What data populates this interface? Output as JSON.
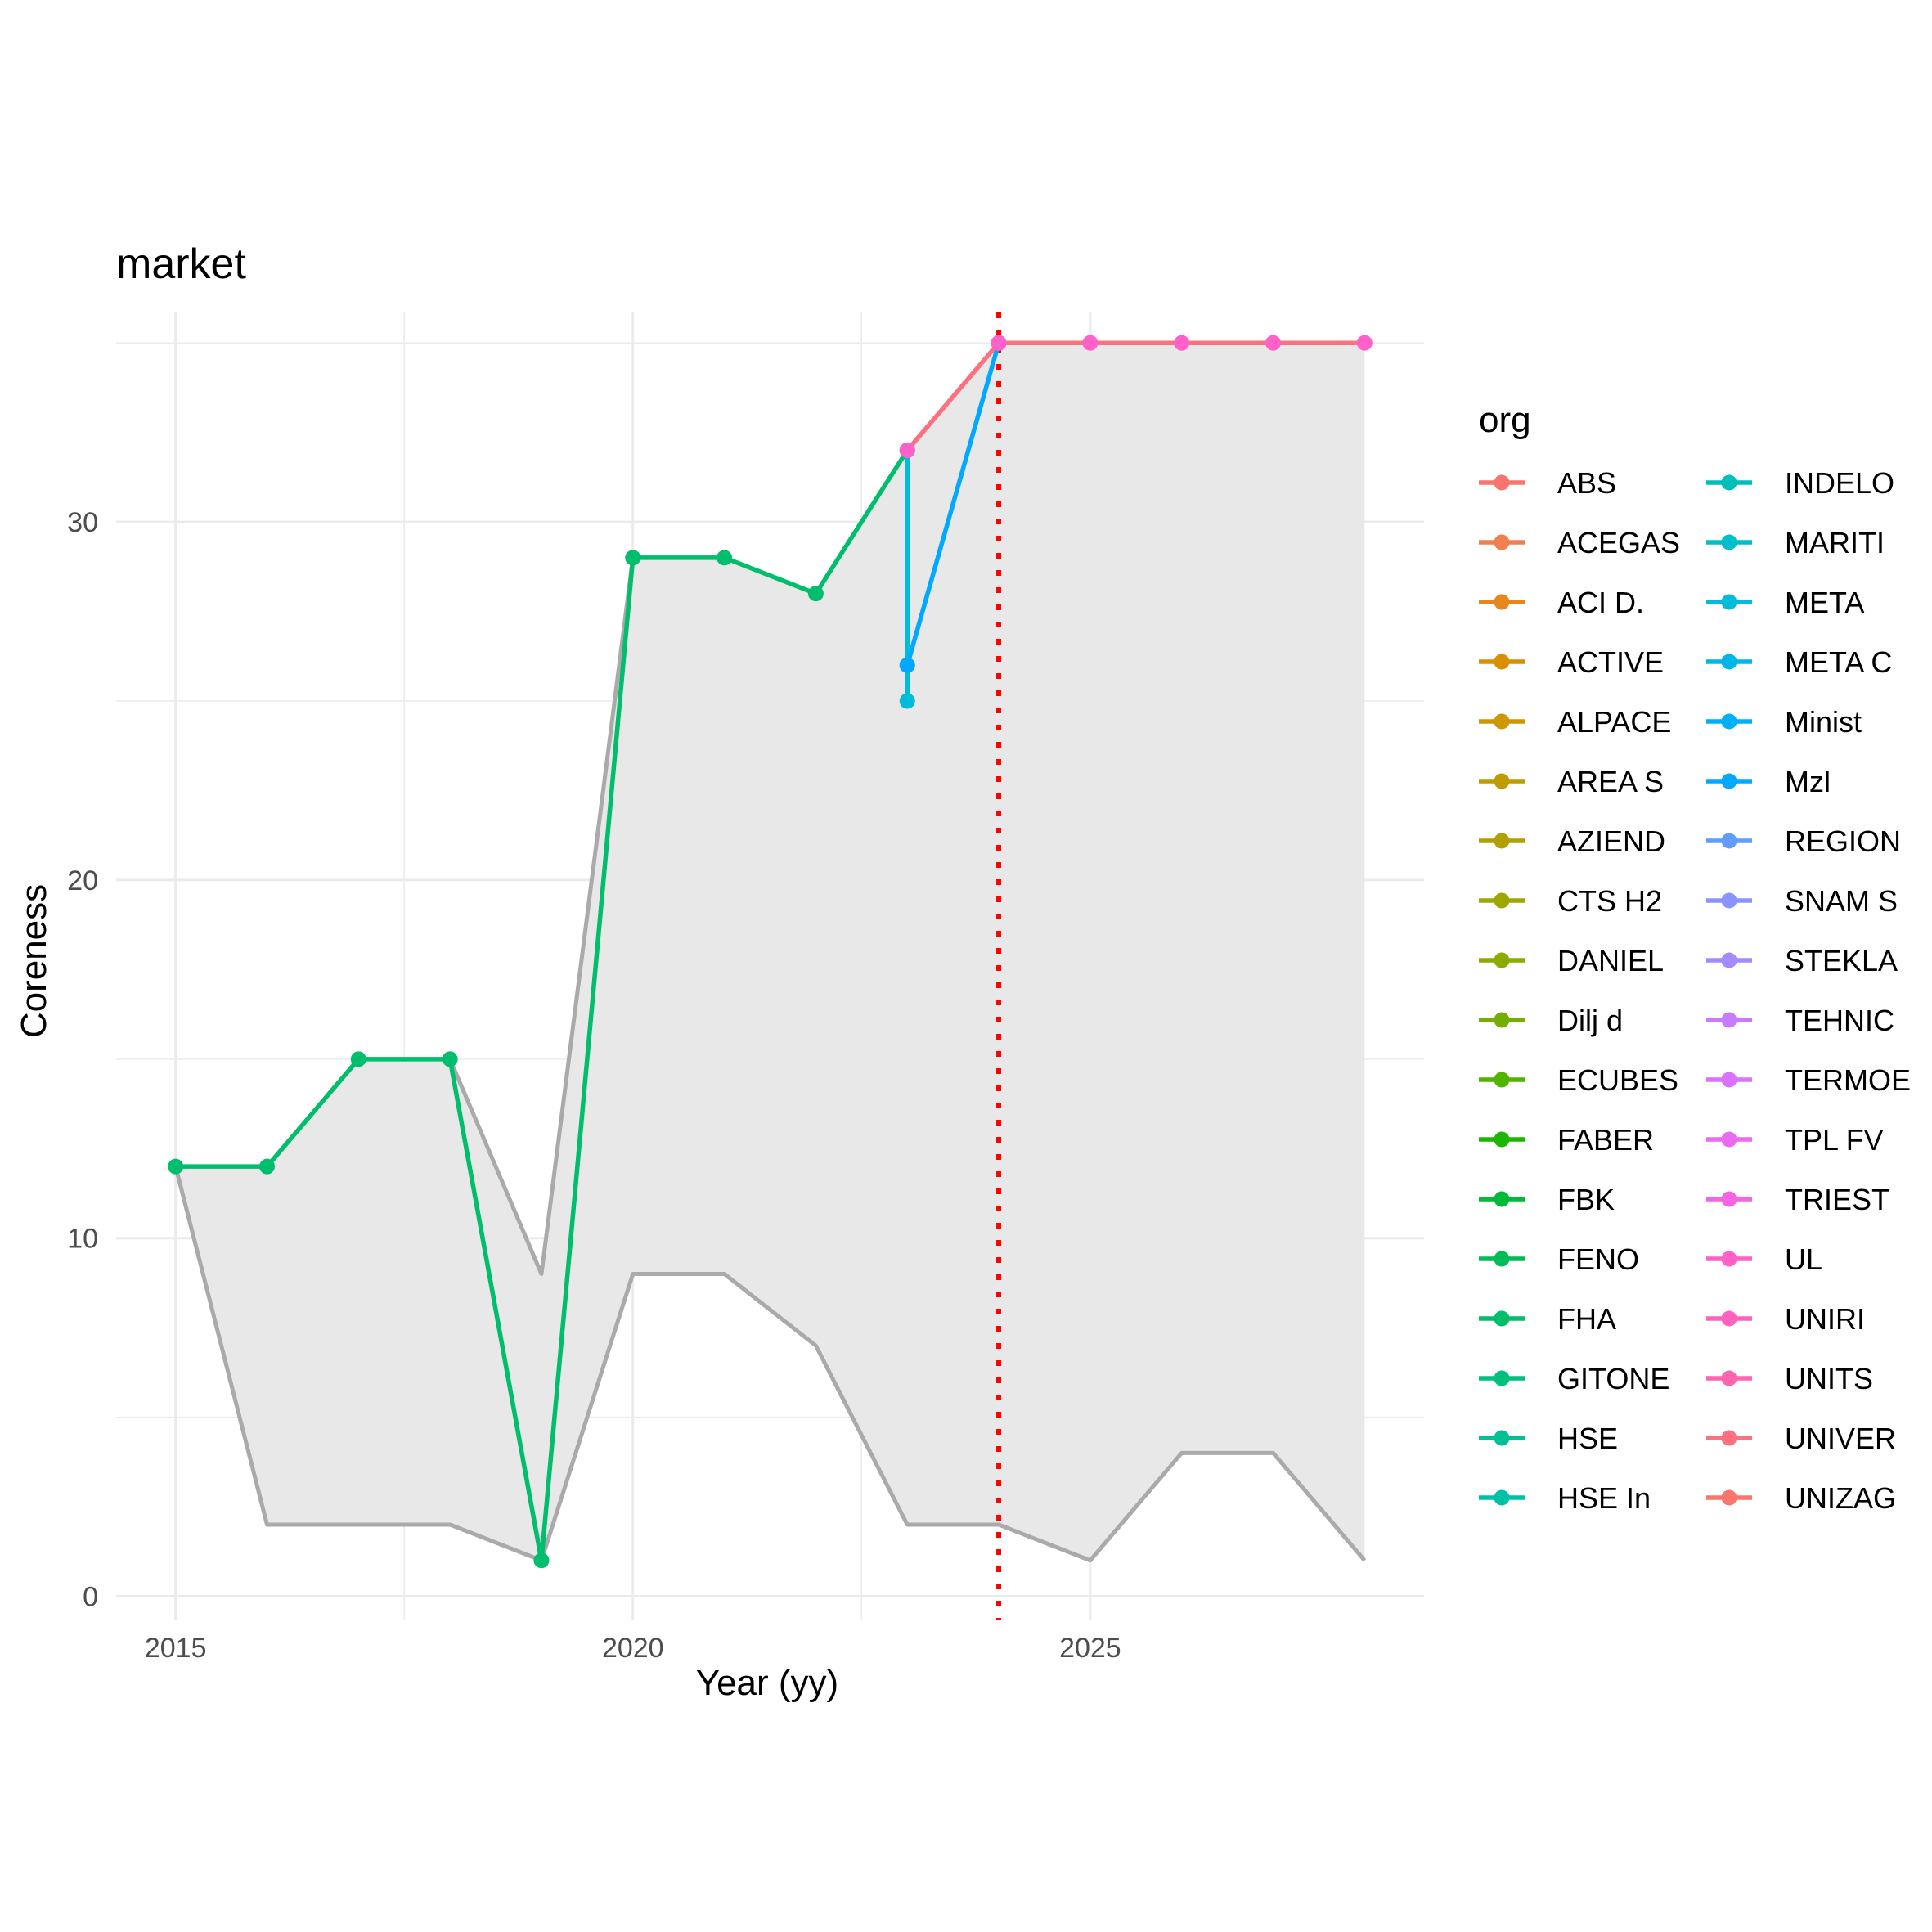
{
  "chart_data": {
    "type": "line",
    "title": "market",
    "xlabel": "Year (yy)",
    "ylabel": "Coreness",
    "xlim": [
      2014.35,
      2028.65
    ],
    "ylim": [
      -0.65,
      35.85
    ],
    "x_ticks": [
      2015,
      2020,
      2025
    ],
    "y_ticks": [
      0,
      10,
      20,
      30
    ],
    "grid": true,
    "reference_line": {
      "x": 2024,
      "color": "#FF0000",
      "style": "dotted"
    },
    "range_band": {
      "fill": "#E8E8E8",
      "line_color": "#AAAAAA",
      "x": [
        2015,
        2016,
        2017,
        2018,
        2019,
        2020,
        2021,
        2022,
        2023,
        2024,
        2025,
        2026,
        2027,
        2028
      ],
      "max": [
        12,
        12,
        15,
        15,
        9,
        29,
        29,
        28,
        32,
        35,
        35,
        35,
        35,
        35
      ],
      "min": [
        12,
        2,
        2,
        2,
        1,
        9,
        9,
        7,
        2,
        2,
        1,
        4,
        4,
        1
      ]
    },
    "series": [
      {
        "color": "#00BE6C",
        "points": [
          [
            2015,
            12
          ],
          [
            2016,
            12
          ],
          [
            2017,
            15
          ],
          [
            2018,
            15
          ],
          [
            2019,
            1
          ],
          [
            2020,
            29
          ],
          [
            2021,
            29
          ],
          [
            2022,
            28
          ],
          [
            2023,
            32
          ]
        ]
      },
      {
        "color": "#00BBDA",
        "points": [
          [
            2023,
            32
          ],
          [
            2023,
            26
          ],
          [
            2023,
            25
          ]
        ]
      },
      {
        "color": "#00A9FF",
        "points": [
          [
            2023,
            26
          ],
          [
            2024,
            35
          ]
        ]
      },
      {
        "color": "#F8766D",
        "points": [
          [
            2023,
            32
          ],
          [
            2024,
            35
          ],
          [
            2025,
            35
          ],
          [
            2026,
            35
          ],
          [
            2027,
            35
          ],
          [
            2028,
            35
          ]
        ],
        "point_color": "#FF61C9",
        "line_color": "#FC717F"
      }
    ],
    "legend": {
      "title": "org",
      "position": "right",
      "columns": [
        [
          {
            "label": "ABS",
            "color": "#F8766D"
          },
          {
            "label": "ACEGAS",
            "color": "#F07F4E"
          },
          {
            "label": "ACI D.",
            "color": "#E7861B"
          },
          {
            "label": "ACTIVE",
            "color": "#DB8E00"
          },
          {
            "label": "ALPACE",
            "color": "#CE9600"
          },
          {
            "label": "AREA S",
            "color": "#C09B00"
          },
          {
            "label": "AZIEND",
            "color": "#B0A100"
          },
          {
            "label": "CTS H2",
            "color": "#9EA700"
          },
          {
            "label": "DANIEL",
            "color": "#8AAB00"
          },
          {
            "label": "Dilj d",
            "color": "#72AF00"
          },
          {
            "label": "ECUBES",
            "color": "#53B400"
          },
          {
            "label": "FABER",
            "color": "#1BB700"
          },
          {
            "label": "FBK",
            "color": "#00BA38"
          },
          {
            "label": "FENO",
            "color": "#00BC56"
          },
          {
            "label": "FHA",
            "color": "#00BE6C"
          },
          {
            "label": "GITONE",
            "color": "#00C080"
          },
          {
            "label": "HSE",
            "color": "#00C094"
          },
          {
            "label": "HSE In",
            "color": "#00C0A7"
          }
        ],
        [
          {
            "label": "INDELO",
            "color": "#00BFB9"
          },
          {
            "label": "MARITI",
            "color": "#00BECA"
          },
          {
            "label": "META",
            "color": "#00BBDA"
          },
          {
            "label": "META C",
            "color": "#00B6E9"
          },
          {
            "label": "Minist",
            "color": "#00B0F6"
          },
          {
            "label": "Mzl",
            "color": "#00A9FF"
          },
          {
            "label": "REGION",
            "color": "#619CFF"
          },
          {
            "label": "SNAM S",
            "color": "#8B93FF"
          },
          {
            "label": "STEKLA",
            "color": "#A58AFF"
          },
          {
            "label": "TEHNIC",
            "color": "#C77CFF"
          },
          {
            "label": "TERMOE",
            "color": "#DB72FB"
          },
          {
            "label": "TPL FV",
            "color": "#EB6AEE"
          },
          {
            "label": "TRIEST",
            "color": "#F564E3"
          },
          {
            "label": "UL",
            "color": "#FF61C9"
          },
          {
            "label": "UNIRI",
            "color": "#FF62BC"
          },
          {
            "label": "UNITS",
            "color": "#FF65AE"
          },
          {
            "label": "UNIVER",
            "color": "#FC717F"
          },
          {
            "label": "UNIZAG",
            "color": "#F8766D"
          }
        ]
      ]
    }
  }
}
